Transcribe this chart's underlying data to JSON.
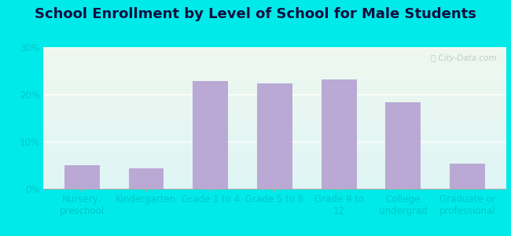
{
  "title": "School Enrollment by Level of School for Male Students",
  "categories": [
    "Nursery,\npreschool",
    "Kindergarten",
    "Grade 1 to 4",
    "Grade 5 to 8",
    "Grade 9 to\n12",
    "College\nundergrad",
    "Graduate or\nprofessional"
  ],
  "values": [
    5.0,
    4.3,
    22.8,
    22.3,
    23.2,
    18.3,
    5.3
  ],
  "bar_color": "#b9a9d4",
  "ylim": [
    0,
    30
  ],
  "yticks": [
    0,
    10,
    20,
    30
  ],
  "ytick_labels": [
    "0%",
    "10%",
    "20%",
    "30%"
  ],
  "title_fontsize": 13,
  "tick_fontsize": 8.5,
  "background_outer": "#00eaea",
  "background_inner_top": "#eef7ee",
  "background_inner_bottom": "#dff5f5",
  "watermark_text": "ⓘ City-Data.com",
  "watermark_color": "#b8c8c8",
  "grid_color": "#ffffff",
  "spine_color": "#aaaaaa",
  "label_color": "#00c8c8",
  "title_color": "#101040"
}
